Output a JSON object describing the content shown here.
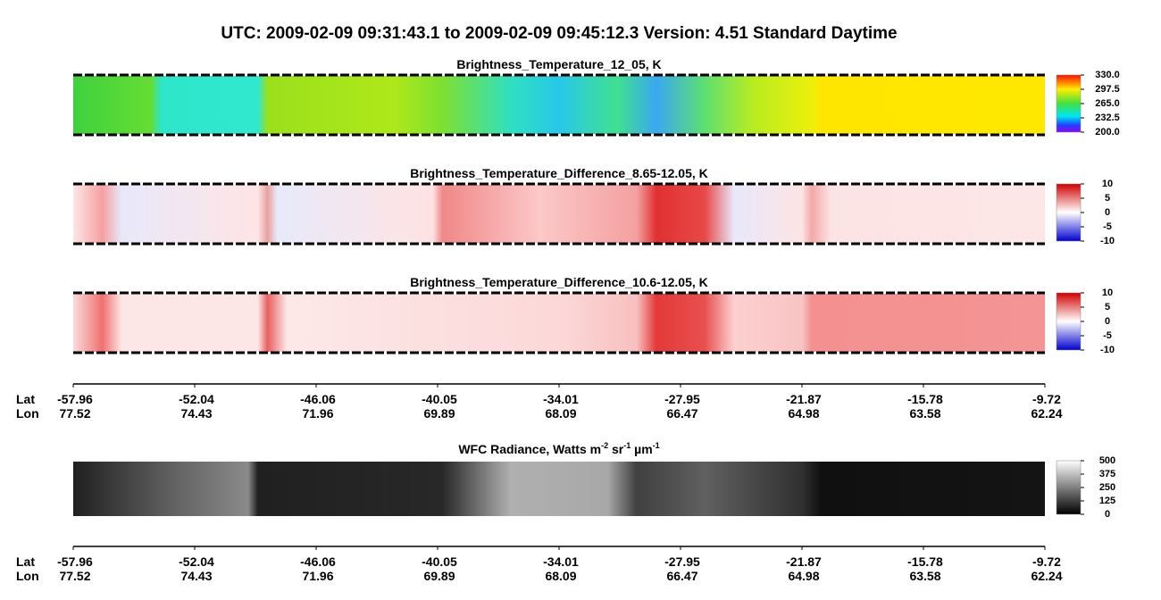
{
  "title": "UTC:  2009-02-09   09:31:43.1  to  2009-02-09   09:45:12.3    Version: 4.51  Standard Daytime",
  "panels": [
    {
      "title": "Brightness_Temperature_12_05, K",
      "colorbar_ticks": [
        {
          "value": 330,
          "label": "330.0"
        },
        {
          "value": 297.5,
          "label": "297.5"
        },
        {
          "value": 265,
          "label": "265.0"
        },
        {
          "value": 232.5,
          "label": "232.5"
        },
        {
          "value": 200,
          "label": "200.0"
        }
      ]
    },
    {
      "title": "Brightness_Temperature_Difference_8.65-12.05, K",
      "colorbar_ticks": [
        10,
        5,
        0,
        -5,
        -10
      ]
    },
    {
      "title": "Brightness_Temperature_Difference_10.6-12.05, K",
      "colorbar_ticks": [
        10,
        5,
        0,
        -5,
        -10
      ]
    },
    {
      "title_parts": [
        "WFC Radiance, Watts m",
        "-2",
        " sr",
        "-1",
        " µm",
        "-1"
      ],
      "colorbar_ticks": [
        500,
        375,
        250,
        125,
        0
      ]
    }
  ],
  "axis": {
    "lat_label": "Lat",
    "lon_label": "Lon",
    "lat": [
      -57.96,
      -52.04,
      -46.06,
      -40.05,
      -34.01,
      -27.95,
      -21.87,
      -15.78,
      -9.72
    ],
    "lon": [
      77.52,
      74.43,
      71.96,
      69.89,
      68.09,
      66.47,
      64.98,
      63.58,
      62.24
    ]
  }
}
